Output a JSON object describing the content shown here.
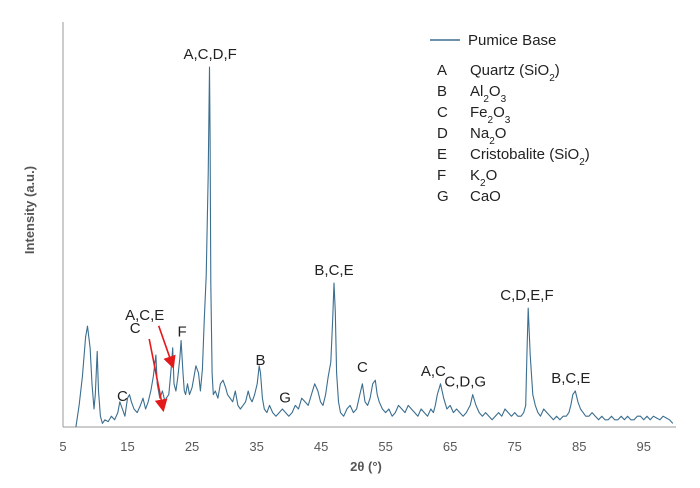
{
  "chart_data": {
    "type": "line",
    "xlabel": "2θ (°)",
    "ylabel": "Intensity (a.u.)",
    "xlim": [
      5,
      100
    ],
    "x_ticks": [
      "5",
      "15",
      "25",
      "35",
      "45",
      "55",
      "65",
      "75",
      "85",
      "95"
    ],
    "ylim": [
      0,
      100
    ],
    "series": [
      {
        "name": "Pumice Base",
        "color": "#3b6e8f",
        "x": [
          7.0,
          7.5,
          8.0,
          8.5,
          8.8,
          9.2,
          9.5,
          9.8,
          10.0,
          10.3,
          10.5,
          10.8,
          11.1,
          11.5,
          12.0,
          12.5,
          13.0,
          13.5,
          13.8,
          14.2,
          14.6,
          15.0,
          15.3,
          15.6,
          16.0,
          16.5,
          17.0,
          17.4,
          17.8,
          18.2,
          18.6,
          19.0,
          19.4,
          19.6,
          20.0,
          20.4,
          20.8,
          21.0,
          21.4,
          21.8,
          22.0,
          22.2,
          22.5,
          22.8,
          23.1,
          23.3,
          23.6,
          23.8,
          24.0,
          24.3,
          24.6,
          25.0,
          25.3,
          25.6,
          26.0,
          26.3,
          26.6,
          26.9,
          27.2,
          27.5,
          27.7,
          27.8,
          27.9,
          28.1,
          28.3,
          28.6,
          29.0,
          29.4,
          29.8,
          30.2,
          30.5,
          30.9,
          31.3,
          31.7,
          32.1,
          32.5,
          32.9,
          33.3,
          33.7,
          34.0,
          34.3,
          34.7,
          35.1,
          35.4,
          35.6,
          35.9,
          36.2,
          36.6,
          37.0,
          37.5,
          38.0,
          38.5,
          39.0,
          39.5,
          40.0,
          40.5,
          41.0,
          41.5,
          42.0,
          42.5,
          43.0,
          43.5,
          44.0,
          44.5,
          44.9,
          45.3,
          45.7,
          46.1,
          46.5,
          46.8,
          47.0,
          47.2,
          47.4,
          47.7,
          48.0,
          48.5,
          49.0,
          49.5,
          50.0,
          50.5,
          51.0,
          51.4,
          51.8,
          52.2,
          52.6,
          53.0,
          53.4,
          53.7,
          54.0,
          54.5,
          55.0,
          55.5,
          56.0,
          56.5,
          57.0,
          57.5,
          58.0,
          58.5,
          59.0,
          59.5,
          60.0,
          60.5,
          61.0,
          61.5,
          62.0,
          62.4,
          62.7,
          63.0,
          63.5,
          64.0,
          64.5,
          65.0,
          65.5,
          66.0,
          66.5,
          67.0,
          67.5,
          67.8,
          68.1,
          68.5,
          69.0,
          69.5,
          70.0,
          70.5,
          71.0,
          71.5,
          72.0,
          72.5,
          73.0,
          73.5,
          74.0,
          74.5,
          75.0,
          75.5,
          76.0,
          76.4,
          76.7,
          76.9,
          77.1,
          77.4,
          77.8,
          78.2,
          78.6,
          79.0,
          79.5,
          80.0,
          80.5,
          81.0,
          81.5,
          82.0,
          82.5,
          83.0,
          83.4,
          83.7,
          84.0,
          84.4,
          84.8,
          85.2,
          85.6,
          86.0,
          86.5,
          87.0,
          87.5,
          88.0,
          88.5,
          89.0,
          89.5,
          90.0,
          90.5,
          91.0,
          91.5,
          92.0,
          92.5,
          93.0,
          93.5,
          94.0,
          94.5,
          95.0,
          95.5,
          96.0,
          96.5,
          97.0,
          97.5,
          98.0,
          98.5,
          99.0,
          99.5
        ],
        "y": [
          0.0,
          6.0,
          14.0,
          25.0,
          28.0,
          22.0,
          12.0,
          5.0,
          9.0,
          21.0,
          10.0,
          3.0,
          1.0,
          2.0,
          1.5,
          3.0,
          2.0,
          4.0,
          7.0,
          5.0,
          3.0,
          8.0,
          9.0,
          7.0,
          5.0,
          4.0,
          6.0,
          8.0,
          5.0,
          7.0,
          10.0,
          14.0,
          20.0,
          12.0,
          8.0,
          10.0,
          7.0,
          8.0,
          9.0,
          17.0,
          22.0,
          12.0,
          10.0,
          14.0,
          19.0,
          24.0,
          15.0,
          10.0,
          9.0,
          12.0,
          9.0,
          11.0,
          14.0,
          17.0,
          15.0,
          10.0,
          16.0,
          30.0,
          42.0,
          70.0,
          100.0,
          80.0,
          40.0,
          15.0,
          9.0,
          10.0,
          8.0,
          12.0,
          13.0,
          11.0,
          9.0,
          8.0,
          7.0,
          10.0,
          6.0,
          5.0,
          6.0,
          7.0,
          10.0,
          8.0,
          7.0,
          9.0,
          12.0,
          17.0,
          15.0,
          8.0,
          5.0,
          4.0,
          6.0,
          4.0,
          3.0,
          4.0,
          5.0,
          4.0,
          3.0,
          4.0,
          6.0,
          5.0,
          8.0,
          7.0,
          6.0,
          9.0,
          12.0,
          10.0,
          7.0,
          6.0,
          9.0,
          14.0,
          18.0,
          30.0,
          40.0,
          32.0,
          15.0,
          7.0,
          4.0,
          3.0,
          5.0,
          6.0,
          4.0,
          5.0,
          9.0,
          12.0,
          7.0,
          6.0,
          8.0,
          12.0,
          13.0,
          9.0,
          7.0,
          5.0,
          4.0,
          5.0,
          3.0,
          4.0,
          6.0,
          5.0,
          4.0,
          6.0,
          5.0,
          4.0,
          3.0,
          5.0,
          4.0,
          3.0,
          5.0,
          4.0,
          6.0,
          9.0,
          12.0,
          8.0,
          5.0,
          6.0,
          4.0,
          5.0,
          4.0,
          3.0,
          4.0,
          5.0,
          6.0,
          9.0,
          6.0,
          4.0,
          3.0,
          4.0,
          3.0,
          2.0,
          3.0,
          4.0,
          3.0,
          5.0,
          4.0,
          3.0,
          4.0,
          3.0,
          3.0,
          4.0,
          6.0,
          20.0,
          33.0,
          20.0,
          9.0,
          6.0,
          4.0,
          3.0,
          5.0,
          4.0,
          3.0,
          2.0,
          3.0,
          2.0,
          3.0,
          3.0,
          4.0,
          6.0,
          9.0,
          10.0,
          7.0,
          5.0,
          4.0,
          3.0,
          3.0,
          4.0,
          3.0,
          2.0,
          3.0,
          2.0,
          2.0,
          3.0,
          2.0,
          2.0,
          3.0,
          2.0,
          3.0,
          2.0,
          2.0,
          3.0,
          3.0,
          2.0,
          3.0,
          2.0,
          3.0,
          2.5,
          2.0,
          3.0,
          2.5,
          2.0,
          1.0
        ]
      }
    ],
    "peak_labels": [
      {
        "text": "A,C,D,F",
        "x": 27.8,
        "y": 100
      },
      {
        "text": "B,C,E",
        "x": 47.0,
        "y": 40
      },
      {
        "text": "C,D,E,F",
        "x": 76.9,
        "y": 33
      },
      {
        "text": "F",
        "x": 23.3,
        "y": 24
      },
      {
        "text": "A,C,E",
        "x": 22.0,
        "y": 22
      },
      {
        "text": "C",
        "x": 19.6,
        "y": 20
      },
      {
        "text": "B",
        "x": 35.6,
        "y": 15
      },
      {
        "text": "C",
        "x": 51.4,
        "y": 13
      },
      {
        "text": "A,C",
        "x": 62.4,
        "y": 12
      },
      {
        "text": "C,D,G",
        "x": 67.8,
        "y": 9
      },
      {
        "text": "G",
        "x": 40.5,
        "y": 4
      },
      {
        "text": "C",
        "x": 14.2,
        "y": 5
      },
      {
        "text": "B,C,E",
        "x": 83.7,
        "y": 10
      }
    ],
    "annotation_arrows": [
      {
        "from_label": "A,C,E",
        "to_x": 22.0,
        "to_y": 17,
        "color": "#e31a1c"
      },
      {
        "from_label": "C",
        "to_x": 20.5,
        "to_y": 5,
        "color": "#e31a1c"
      }
    ],
    "legend": {
      "series_label": "Pumice Base",
      "entries": [
        {
          "key": "A",
          "name": "Quartz (SiO",
          "sub": "2",
          "tail": ")"
        },
        {
          "key": "B",
          "name": "Al",
          "sub": "2",
          "tail": "O",
          "sub2": "3"
        },
        {
          "key": "C",
          "name": "Fe",
          "sub": "2",
          "tail": "O",
          "sub2": "3"
        },
        {
          "key": "D",
          "name": "Na",
          "sub": "2",
          "tail": "O"
        },
        {
          "key": "E",
          "name": "Cristobalite (SiO",
          "sub": "2",
          "tail": ")"
        },
        {
          "key": "F",
          "name": "K",
          "sub": "2",
          "tail": "O"
        },
        {
          "key": "G",
          "name": "CaO"
        }
      ],
      "placement": "top-right"
    }
  }
}
